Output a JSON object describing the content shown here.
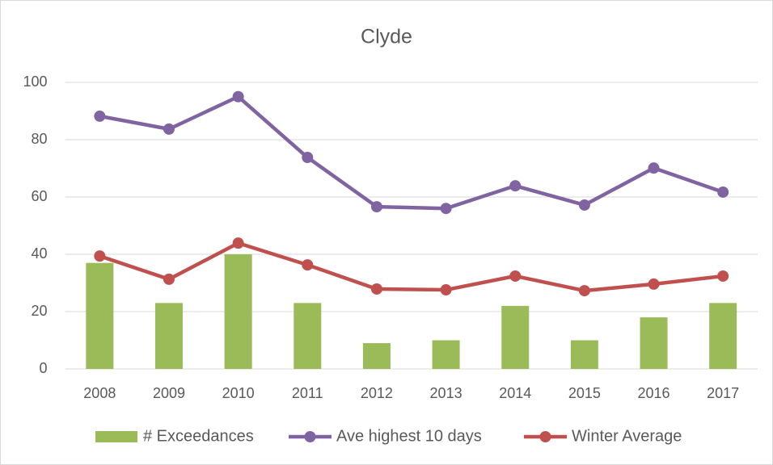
{
  "chart_data": {
    "type": "bar",
    "title": "Clyde",
    "categories": [
      "2008",
      "2009",
      "2010",
      "2011",
      "2012",
      "2013",
      "2014",
      "2015",
      "2016",
      "2017"
    ],
    "series": [
      {
        "name": "# Exceedances",
        "type": "bar",
        "color": "#9bbb59",
        "values": [
          37,
          23,
          40,
          23,
          9,
          10,
          22,
          10,
          18,
          23
        ]
      },
      {
        "name": "Ave highest 10 days",
        "type": "line",
        "color": "#8064a2",
        "values": [
          88.2,
          83.7,
          95,
          73.8,
          56.6,
          56,
          63.9,
          57.2,
          70.1,
          61.7
        ]
      },
      {
        "name": "Winter Average",
        "type": "line",
        "color": "#c0504d",
        "values": [
          39.4,
          31.3,
          43.9,
          36.3,
          27.9,
          27.6,
          32.4,
          27.3,
          29.6,
          32.4
        ]
      }
    ],
    "ylim": [
      0,
      100
    ],
    "yticks": [
      0,
      20,
      40,
      60,
      80,
      100
    ],
    "grid": true,
    "legend": "bottom"
  }
}
